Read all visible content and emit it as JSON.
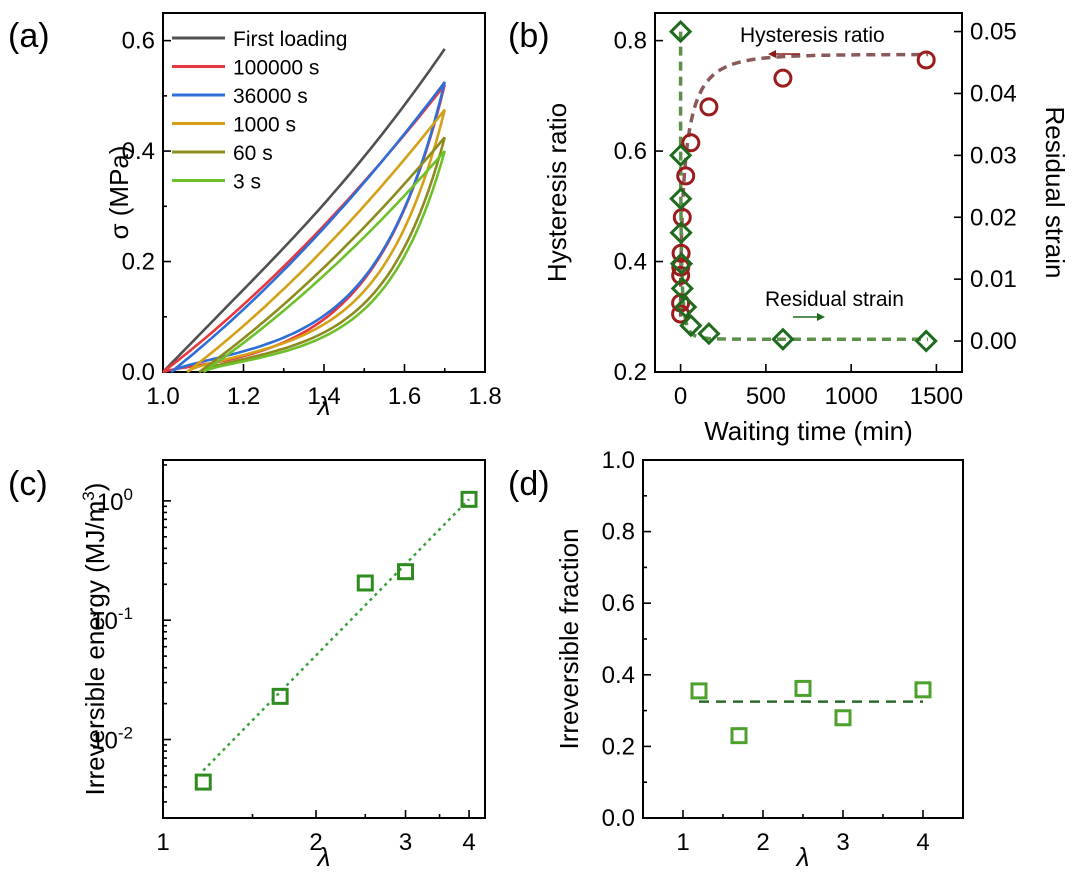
{
  "chart_data": [
    {
      "panel": "(a)",
      "type": "line",
      "xlabel": "λ",
      "ylabel": "σ (MPa)",
      "xlim": [
        1.0,
        1.8
      ],
      "ylim": [
        0.0,
        0.65
      ],
      "xticks": [
        "1.0",
        "1.2",
        "1.4",
        "1.6",
        "1.8"
      ],
      "yticks": [
        "0.0",
        "0.2",
        "0.4",
        "0.6"
      ],
      "legend_position": "top-left",
      "series": [
        {
          "name": "First loading",
          "color": "#505050",
          "max_stretch": 1.7,
          "peak_stress": 0.585,
          "residual_stretch": 1.0,
          "loop_depth": 0.0
        },
        {
          "name": "100000 s",
          "color": "#e8383e",
          "max_stretch": 1.7,
          "peak_stress": 0.52,
          "residual_stretch": 1.0,
          "loop_depth": 0.05
        },
        {
          "name": "36000 s",
          "color": "#2d6fd6",
          "max_stretch": 1.7,
          "peak_stress": 0.525,
          "residual_stretch": 1.02,
          "loop_depth": 0.09
        },
        {
          "name": "1000 s",
          "color": "#d4a017",
          "max_stretch": 1.7,
          "peak_stress": 0.475,
          "residual_stretch": 1.06,
          "loop_depth": 0.09
        },
        {
          "name": "60 s",
          "color": "#8c8c1e",
          "max_stretch": 1.7,
          "peak_stress": 0.425,
          "residual_stretch": 1.09,
          "loop_depth": 0.08
        },
        {
          "name": "3 s",
          "color": "#6ec02a",
          "max_stretch": 1.7,
          "peak_stress": 0.4,
          "residual_stretch": 1.1,
          "loop_depth": 0.07
        }
      ]
    },
    {
      "panel": "(b)",
      "type": "scatter",
      "xlabel": "Waiting time (min)",
      "ylabel_left": "Hysteresis ratio",
      "ylabel_right": "Residual strain",
      "xlim": [
        -150,
        1650
      ],
      "ylim_left": [
        0.2,
        0.85
      ],
      "ylim_right": [
        -0.005,
        0.053
      ],
      "xticks": [
        "0",
        "500",
        "1000",
        "1500"
      ],
      "yticks_left": [
        "0.2",
        "0.4",
        "0.6",
        "0.8"
      ],
      "yticks_right": [
        "0.00",
        "0.01",
        "0.02",
        "0.03",
        "0.04",
        "0.05"
      ],
      "annotations": [
        "Hysteresis ratio",
        "Residual strain"
      ],
      "series": [
        {
          "name": "Hysteresis ratio",
          "axis": "left",
          "color": "#9b1c1c",
          "marker": "circle",
          "x": [
            0.05,
            0.1,
            0.5,
            1,
            3,
            10,
            30,
            60,
            166,
            600,
            1440
          ],
          "y": [
            0.305,
            0.325,
            0.375,
            0.39,
            0.415,
            0.48,
            0.555,
            0.615,
            0.68,
            0.732,
            0.765
          ]
        },
        {
          "name": "Residual strain",
          "axis": "right",
          "color": "#1e6b1e",
          "marker": "diamond",
          "x": [
            0.05,
            0.5,
            1,
            3,
            5,
            10,
            30,
            60,
            166,
            600,
            1440
          ],
          "y": [
            0.05,
            0.03,
            0.023,
            0.0175,
            0.0125,
            0.0085,
            0.0055,
            0.0025,
            0.0012,
            0.0003,
            0.0
          ]
        }
      ]
    },
    {
      "panel": "(c)",
      "type": "scatter",
      "xlabel": "λ",
      "ylabel": "Irreversible energy (MJ/m³)",
      "xscale": "log",
      "yscale": "log",
      "xlim": [
        1.0,
        4.3
      ],
      "ylim": [
        0.0022,
        2.2
      ],
      "xticks": [
        "1",
        "2",
        "3",
        "4"
      ],
      "yticks": [
        "10-2",
        "10-1",
        "100"
      ],
      "series": [
        {
          "name": "",
          "color": "#2e8b1e",
          "marker": "square",
          "x": [
            1.2,
            1.7,
            2.5,
            3.0,
            4.0
          ],
          "y": [
            0.0044,
            0.023,
            0.205,
            0.255,
            1.03
          ]
        }
      ],
      "fit": {
        "style": "dotted",
        "color": "#3aa03a",
        "x": [
          1.2,
          4.0
        ],
        "y": [
          0.0055,
          1.03
        ]
      }
    },
    {
      "panel": "(d)",
      "type": "scatter",
      "xlabel": "λ",
      "ylabel": "Irreversible fraction",
      "xlim": [
        0.5,
        4.5
      ],
      "ylim": [
        0.0,
        1.0
      ],
      "xticks": [
        "1",
        "2",
        "3",
        "4"
      ],
      "yticks": [
        "0.0",
        "0.2",
        "0.4",
        "0.6",
        "0.8",
        "1.0"
      ],
      "series": [
        {
          "name": "",
          "color": "#4ca02c",
          "marker": "square",
          "x": [
            1.2,
            1.7,
            2.5,
            3.0,
            4.0
          ],
          "y": [
            0.355,
            0.23,
            0.362,
            0.28,
            0.358
          ]
        }
      ],
      "mean_line": {
        "style": "dashed",
        "color": "#2d6b2d",
        "y": 0.325,
        "x": [
          1.2,
          4.0
        ]
      }
    }
  ]
}
